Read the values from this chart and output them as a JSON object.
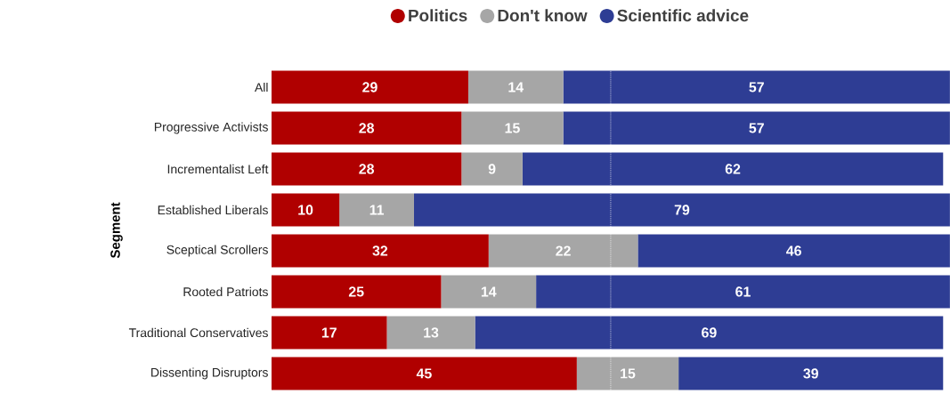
{
  "chart_data": {
    "type": "bar",
    "orientation": "horizontal",
    "stacked": true,
    "ylabel": "Segment",
    "categories": [
      "All",
      "Progressive Activists",
      "Incrementalist Left",
      "Established Liberals",
      "Sceptical Scrollers",
      "Rooted Patriots",
      "Traditional Conservatives",
      "Dissenting Disruptors"
    ],
    "series": [
      {
        "name": "Politics",
        "color": "#b00000",
        "values": [
          29,
          28,
          28,
          10,
          32,
          25,
          17,
          45
        ]
      },
      {
        "name": "Don't know",
        "color": "#a6a6a6",
        "values": [
          14,
          15,
          9,
          11,
          22,
          14,
          13,
          15
        ]
      },
      {
        "name": "Scientific advice",
        "color": "#2e3d94",
        "values": [
          57,
          57,
          62,
          79,
          46,
          61,
          69,
          39
        ]
      }
    ],
    "tick_labels": "y",
    "data_labels": true,
    "legend": "top",
    "ref_lines": [
      {
        "axis": "x",
        "value": 50,
        "color": "#ffffff",
        "line_style": "dotted"
      }
    ]
  }
}
